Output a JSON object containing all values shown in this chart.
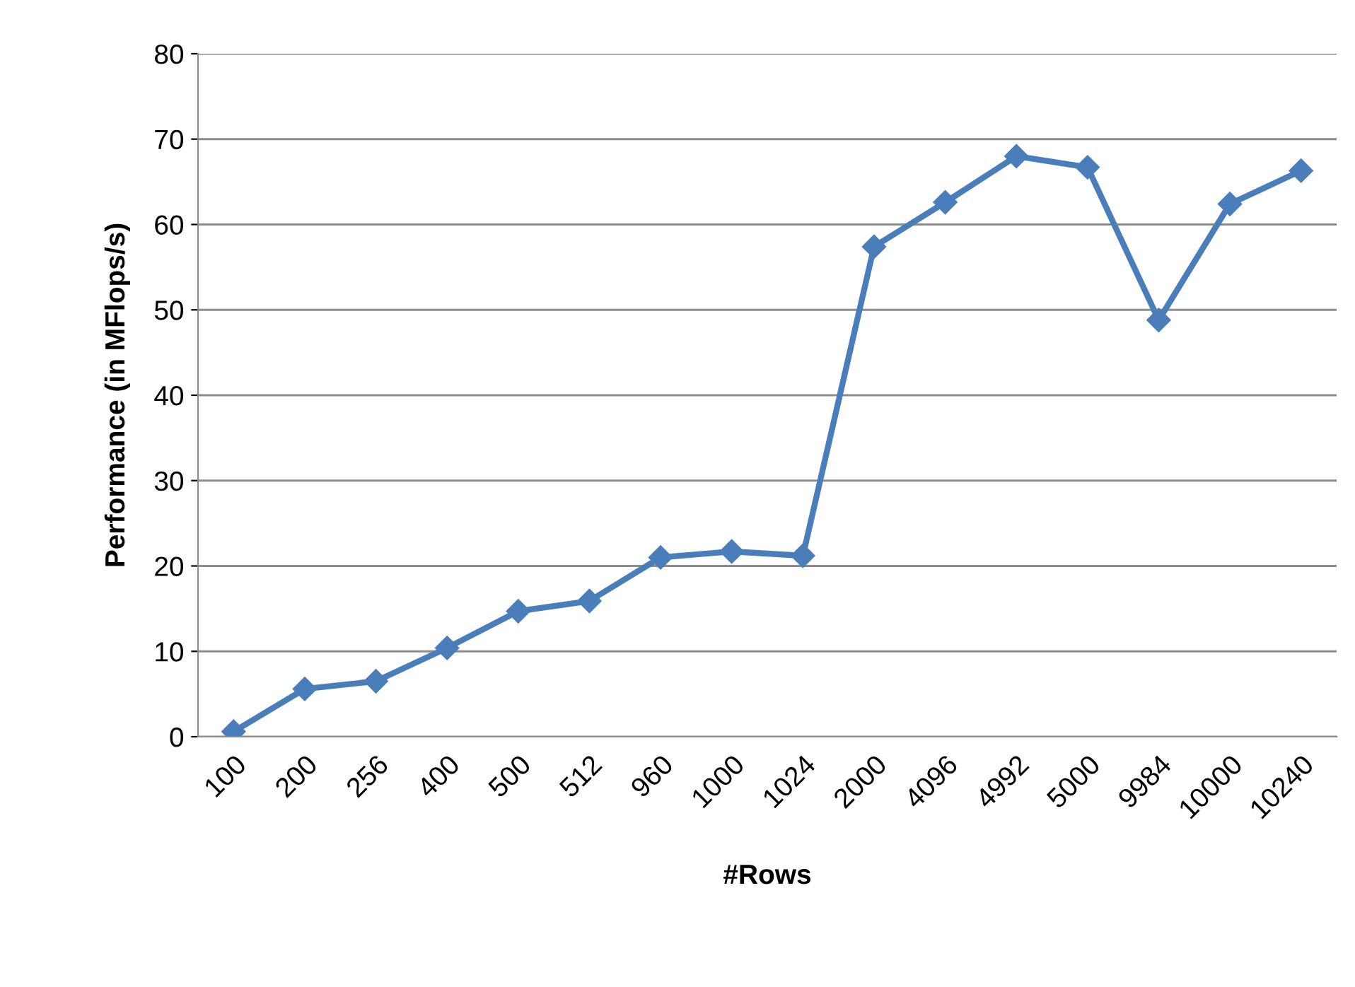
{
  "chart_data": {
    "type": "line",
    "xlabel": "#Rows",
    "ylabel": "Performance (in MFlops/s)",
    "categories": [
      "100",
      "200",
      "256",
      "400",
      "500",
      "512",
      "960",
      "1000",
      "1024",
      "2000",
      "4096",
      "4992",
      "5000",
      "9984",
      "10000",
      "10240"
    ],
    "series": [
      {
        "color": "#4a7ebb",
        "values": [
          0.6,
          5.6,
          6.5,
          10.4,
          14.7,
          15.9,
          21.0,
          21.7,
          21.2,
          57.4,
          62.6,
          68.0,
          66.7,
          48.8,
          62.4,
          66.3
        ]
      }
    ],
    "ylim": [
      0,
      80
    ],
    "yticks": [
      0,
      10,
      20,
      30,
      40,
      50,
      60,
      70,
      80
    ],
    "grid": "y",
    "marker": "diamond",
    "line_style": "solid"
  }
}
